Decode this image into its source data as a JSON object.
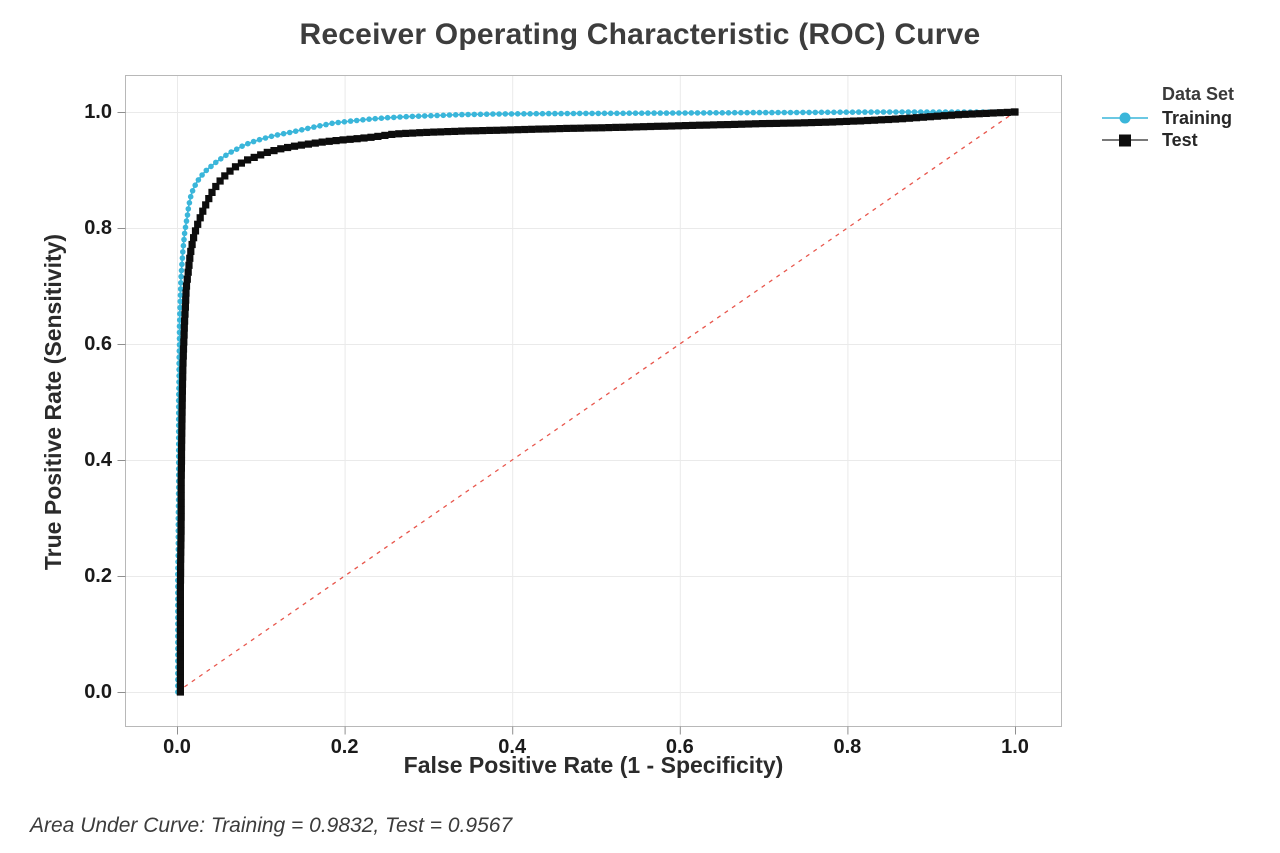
{
  "footer": "Area Under Curve: Training = 0.9832, Test = 0.9567",
  "chart_data": {
    "type": "line",
    "title": "Receiver Operating Characteristic (ROC) Curve",
    "xlabel": "False Positive Rate (1 - Specificity)",
    "ylabel": "True Positive Rate (Sensitivity)",
    "xlim": [
      0,
      1
    ],
    "ylim": [
      0,
      1
    ],
    "x_tick_values": [
      0,
      0.2,
      0.4,
      0.6,
      0.8,
      1.0
    ],
    "x_tick_labels": [
      "0.0",
      "0.2",
      "0.4",
      "0.6",
      "0.8",
      "1.0"
    ],
    "y_tick_values": [
      0,
      0.2,
      0.4,
      0.6,
      0.8,
      1.0
    ],
    "y_tick_labels": [
      "0.0",
      "0.2",
      "0.4",
      "0.6",
      "0.8",
      "1.0"
    ],
    "grid": true,
    "legend_title": "Data Set",
    "legend_position": "right",
    "reference_line": {
      "from": [
        0,
        0
      ],
      "to": [
        1,
        1
      ],
      "style": "dashed",
      "color": "#e8564c"
    },
    "series": [
      {
        "name": "Training",
        "auc": 0.9832,
        "color": "#3ab6da",
        "marker": "circle",
        "points": [
          [
            0.001,
            0.0
          ],
          [
            0.001,
            0.05
          ],
          [
            0.001,
            0.1
          ],
          [
            0.001,
            0.15
          ],
          [
            0.001,
            0.2
          ],
          [
            0.0015,
            0.25
          ],
          [
            0.0015,
            0.3
          ],
          [
            0.002,
            0.35
          ],
          [
            0.002,
            0.4
          ],
          [
            0.002,
            0.45
          ],
          [
            0.002,
            0.5
          ],
          [
            0.0025,
            0.54
          ],
          [
            0.0025,
            0.57
          ],
          [
            0.003,
            0.6
          ],
          [
            0.003,
            0.63
          ],
          [
            0.0035,
            0.66
          ],
          [
            0.004,
            0.685
          ],
          [
            0.0045,
            0.705
          ],
          [
            0.005,
            0.72
          ],
          [
            0.006,
            0.74
          ],
          [
            0.007,
            0.76
          ],
          [
            0.008,
            0.775
          ],
          [
            0.009,
            0.79
          ],
          [
            0.01,
            0.8
          ],
          [
            0.012,
            0.818
          ],
          [
            0.014,
            0.838
          ],
          [
            0.016,
            0.852
          ],
          [
            0.018,
            0.862
          ],
          [
            0.021,
            0.872
          ],
          [
            0.024,
            0.88
          ],
          [
            0.028,
            0.888
          ],
          [
            0.032,
            0.895
          ],
          [
            0.037,
            0.902
          ],
          [
            0.042,
            0.908
          ],
          [
            0.048,
            0.915
          ],
          [
            0.055,
            0.922
          ],
          [
            0.062,
            0.929
          ],
          [
            0.07,
            0.935
          ],
          [
            0.079,
            0.942
          ],
          [
            0.089,
            0.948
          ],
          [
            0.1,
            0.953
          ],
          [
            0.112,
            0.958
          ],
          [
            0.125,
            0.962
          ],
          [
            0.139,
            0.966
          ],
          [
            0.154,
            0.971
          ],
          [
            0.17,
            0.976
          ],
          [
            0.187,
            0.981
          ],
          [
            0.205,
            0.984
          ],
          [
            0.225,
            0.987
          ],
          [
            0.25,
            0.99
          ],
          [
            0.28,
            0.9925
          ],
          [
            0.31,
            0.994
          ],
          [
            0.34,
            0.9955
          ],
          [
            0.38,
            0.9965
          ],
          [
            0.43,
            0.997
          ],
          [
            0.49,
            0.9975
          ],
          [
            0.55,
            0.998
          ],
          [
            0.62,
            0.9985
          ],
          [
            0.7,
            0.999
          ],
          [
            0.78,
            0.9995
          ],
          [
            0.84,
            1.0
          ],
          [
            0.89,
            1.0
          ],
          [
            1.0,
            1.0
          ]
        ]
      },
      {
        "name": "Test",
        "auc": 0.9567,
        "color": "#0d0d0d",
        "marker": "square",
        "points": [
          [
            0.004,
            0.0
          ],
          [
            0.004,
            0.06
          ],
          [
            0.004,
            0.12
          ],
          [
            0.004,
            0.18
          ],
          [
            0.0045,
            0.24
          ],
          [
            0.005,
            0.3
          ],
          [
            0.005,
            0.36
          ],
          [
            0.0055,
            0.42
          ],
          [
            0.006,
            0.47
          ],
          [
            0.0065,
            0.52
          ],
          [
            0.007,
            0.56
          ],
          [
            0.008,
            0.6
          ],
          [
            0.009,
            0.635
          ],
          [
            0.01,
            0.665
          ],
          [
            0.011,
            0.695
          ],
          [
            0.013,
            0.72
          ],
          [
            0.015,
            0.745
          ],
          [
            0.017,
            0.765
          ],
          [
            0.02,
            0.785
          ],
          [
            0.023,
            0.8
          ],
          [
            0.027,
            0.815
          ],
          [
            0.031,
            0.83
          ],
          [
            0.036,
            0.845
          ],
          [
            0.042,
            0.862
          ],
          [
            0.048,
            0.875
          ],
          [
            0.055,
            0.887
          ],
          [
            0.063,
            0.898
          ],
          [
            0.072,
            0.908
          ],
          [
            0.082,
            0.916
          ],
          [
            0.094,
            0.923
          ],
          [
            0.107,
            0.93
          ],
          [
            0.122,
            0.936
          ],
          [
            0.14,
            0.941
          ],
          [
            0.158,
            0.945
          ],
          [
            0.178,
            0.949
          ],
          [
            0.2,
            0.952
          ],
          [
            0.23,
            0.956
          ],
          [
            0.26,
            0.962
          ],
          [
            0.3,
            0.965
          ],
          [
            0.34,
            0.967
          ],
          [
            0.38,
            0.9685
          ],
          [
            0.42,
            0.97
          ],
          [
            0.46,
            0.9715
          ],
          [
            0.5,
            0.9725
          ],
          [
            0.54,
            0.974
          ],
          [
            0.58,
            0.9755
          ],
          [
            0.62,
            0.977
          ],
          [
            0.66,
            0.9785
          ],
          [
            0.7,
            0.98
          ],
          [
            0.74,
            0.981
          ],
          [
            0.78,
            0.9825
          ],
          [
            0.82,
            0.985
          ],
          [
            0.86,
            0.988
          ],
          [
            0.9,
            0.992
          ],
          [
            0.94,
            0.996
          ],
          [
            0.97,
            0.998
          ],
          [
            1.0,
            1.0
          ]
        ]
      }
    ]
  }
}
